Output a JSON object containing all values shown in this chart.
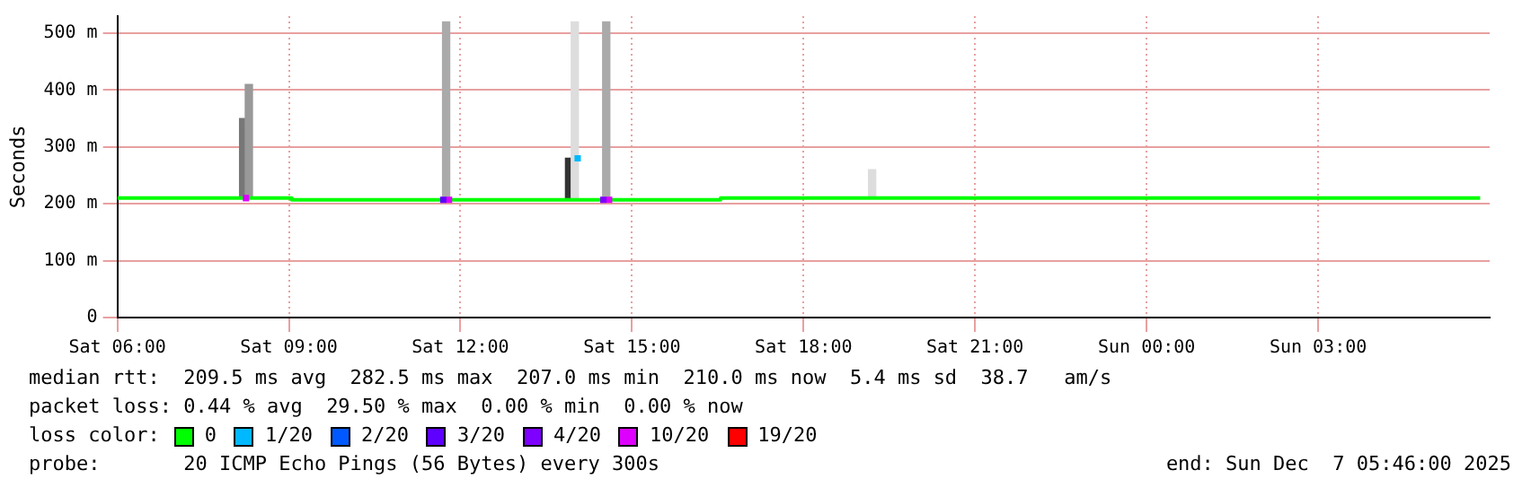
{
  "chart_data": {
    "type": "line",
    "ylabel": "Seconds",
    "xlim": [
      "2025-12-06T06:00",
      "2025-12-07T06:00"
    ],
    "ylim": [
      0,
      530
    ],
    "xticks": [
      {
        "value": "2025-12-06T06:00",
        "label": "Sat 06:00"
      },
      {
        "value": "2025-12-06T09:00",
        "label": "Sat 09:00"
      },
      {
        "value": "2025-12-06T12:00",
        "label": "Sat 12:00"
      },
      {
        "value": "2025-12-06T15:00",
        "label": "Sat 15:00"
      },
      {
        "value": "2025-12-06T18:00",
        "label": "Sat 18:00"
      },
      {
        "value": "2025-12-06T21:00",
        "label": "Sat 21:00"
      },
      {
        "value": "2025-12-07T00:00",
        "label": "Sun 00:00"
      },
      {
        "value": "2025-12-07T03:00",
        "label": "Sun 03:00"
      }
    ],
    "yticks": [
      0,
      {
        "value": 100,
        "label": "100 m"
      },
      {
        "value": 200,
        "label": "200 m"
      },
      {
        "value": 300,
        "label": "300 m"
      },
      {
        "value": 400,
        "label": "400 m"
      },
      {
        "value": 500,
        "label": "500 m"
      }
    ],
    "grid": true,
    "legend": "bottom",
    "legend_title": "loss color:",
    "line_style": "solid",
    "series": [
      {
        "type": "bar",
        "x": [
          "2025-12-06T08:12",
          "2025-12-06T08:18",
          "2025-12-06T11:45",
          "2025-12-06T13:54",
          "2025-12-06T14:00",
          "2025-12-06T14:33",
          "2025-12-06T19:12"
        ],
        "base": [
          210,
          210,
          207,
          207,
          207,
          207,
          210
        ],
        "values": [
          140,
          200,
          313,
          73,
          313,
          313,
          50
        ],
        "colors": [
          "#777777",
          "#999999",
          "#aaaaaa",
          "#333333",
          "#dddddd",
          "#aaaaaa",
          "#dddddd"
        ]
      },
      {
        "name": "0",
        "color": "#00ff00",
        "x": [
          "2025-12-06T06:00",
          "2025-12-06T09:03",
          "2025-12-06T09:03",
          "2025-12-06T16:33",
          "2025-12-06T16:33",
          "2025-12-07T05:50"
        ],
        "values": [
          210,
          210,
          207,
          207,
          210,
          210
        ]
      },
      {
        "name": "1/20",
        "type": "scatter",
        "color": "#00b8ff",
        "x": [
          "2025-12-06T14:03"
        ],
        "values": [
          280
        ]
      },
      {
        "name": "2/20",
        "type": "scatter",
        "color": "#0059ff"
      },
      {
        "name": "3/20",
        "type": "scatter",
        "color": "#5e00ff",
        "x": [
          "2025-12-06T11:42"
        ],
        "values": [
          207
        ]
      },
      {
        "name": "4/20",
        "type": "scatter",
        "color": "#7e00ff",
        "x": [
          "2025-12-06T14:30"
        ],
        "values": [
          207
        ]
      },
      {
        "name": "10/20",
        "type": "scatter",
        "color": "#dd00ff",
        "x": [
          "2025-12-06T08:15",
          "2025-12-06T11:48",
          "2025-12-06T14:36"
        ],
        "values": [
          210,
          207,
          207
        ]
      },
      {
        "name": "19/20",
        "type": "scatter",
        "color": "#ff0000"
      }
    ],
    "annotations": [
      "median rtt:  209.5 ms avg  282.5 ms max  207.0 ms min  210.0 ms now  5.4 ms sd  38.7   am/s",
      "packet loss: 0.44 % avg  29.50 % max  0.00 % min  0.00 % now",
      "probe:       20 ICMP Echo Pings (56 Bytes) every 300s",
      "end: Sun Dec  7 05:46:00 2025"
    ]
  }
}
